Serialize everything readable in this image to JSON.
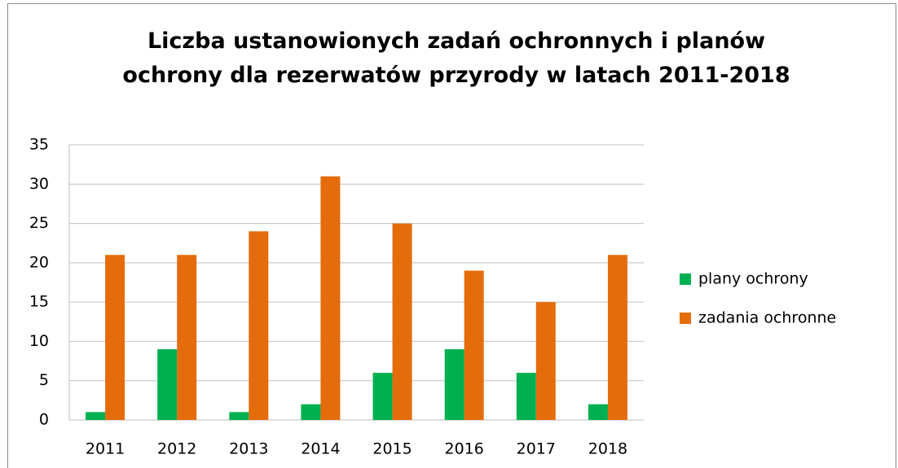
{
  "chart_data": {
    "type": "bar",
    "title": "Liczba ustanowionych zadań ochronnych i planów ochrony dla rezerwatów przyrody w latach 2011-2018",
    "categories": [
      "2011",
      "2012",
      "2013",
      "2014",
      "2015",
      "2016",
      "2017",
      "2018"
    ],
    "series": [
      {
        "name": "plany ochrony",
        "color": "#00b050",
        "values": [
          1,
          9,
          1,
          2,
          6,
          9,
          6,
          2
        ]
      },
      {
        "name": "zadania ochronne",
        "color": "#e46c0a",
        "values": [
          21,
          21,
          24,
          31,
          25,
          19,
          15,
          21
        ]
      }
    ],
    "ylim": [
      0,
      35
    ],
    "yticks": [
      0,
      5,
      10,
      15,
      20,
      25,
      30,
      35
    ],
    "grid": true,
    "legend": "right"
  }
}
